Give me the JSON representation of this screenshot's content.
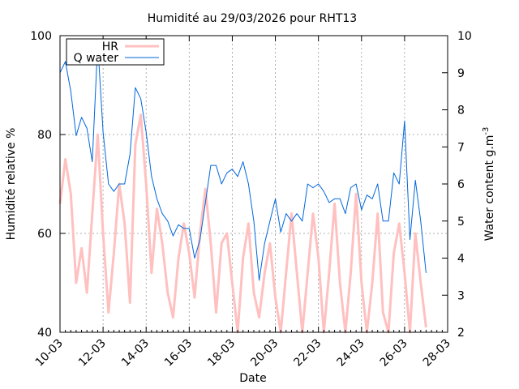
{
  "chart_data": {
    "type": "line",
    "title": "Humidité au 29/03/2026 pour RHT13",
    "xlabel": "Date",
    "ylabel": "Humidité relative %",
    "y2label": "Water content g.m",
    "y2label_sup": "-3",
    "xlim": [
      "2026-03-10",
      "2026-03-28"
    ],
    "ylim": [
      40,
      100
    ],
    "y2lim": [
      2,
      10
    ],
    "x_ticks": [
      "10-03",
      "12-03",
      "14-03",
      "16-03",
      "18-03",
      "20-03",
      "22-03",
      "24-03",
      "26-03",
      "28-03"
    ],
    "y_ticks": [
      40,
      60,
      80,
      100
    ],
    "y2_ticks": [
      2,
      3,
      4,
      5,
      6,
      7,
      8,
      9,
      10
    ],
    "grid": true,
    "legend_position": "top-left",
    "series": [
      {
        "name": "HR",
        "axis": "y",
        "color": "#ffc0c0",
        "x": [
          "2026-03-10 00:00",
          "2026-03-10 06:00",
          "2026-03-10 12:00",
          "2026-03-10 18:00",
          "2026-03-11 00:00",
          "2026-03-11 06:00",
          "2026-03-11 12:00",
          "2026-03-11 18:00",
          "2026-03-12 00:00",
          "2026-03-12 06:00",
          "2026-03-12 12:00",
          "2026-03-12 18:00",
          "2026-03-13 00:00",
          "2026-03-13 06:00",
          "2026-03-13 12:00",
          "2026-03-13 18:00",
          "2026-03-14 00:00",
          "2026-03-14 06:00",
          "2026-03-14 12:00",
          "2026-03-14 18:00",
          "2026-03-15 00:00",
          "2026-03-15 06:00",
          "2026-03-15 12:00",
          "2026-03-15 18:00",
          "2026-03-16 00:00",
          "2026-03-16 06:00",
          "2026-03-16 12:00",
          "2026-03-16 18:00",
          "2026-03-17 00:00",
          "2026-03-17 06:00",
          "2026-03-17 12:00",
          "2026-03-17 18:00",
          "2026-03-18 00:00",
          "2026-03-18 06:00",
          "2026-03-18 12:00",
          "2026-03-18 18:00",
          "2026-03-19 00:00",
          "2026-03-19 06:00",
          "2026-03-19 12:00",
          "2026-03-19 18:00",
          "2026-03-20 00:00",
          "2026-03-20 06:00",
          "2026-03-20 12:00",
          "2026-03-20 18:00",
          "2026-03-21 00:00",
          "2026-03-21 06:00",
          "2026-03-21 12:00",
          "2026-03-21 18:00",
          "2026-03-22 00:00",
          "2026-03-22 06:00",
          "2026-03-22 12:00",
          "2026-03-22 18:00",
          "2026-03-23 00:00",
          "2026-03-23 06:00",
          "2026-03-23 12:00",
          "2026-03-23 18:00",
          "2026-03-24 00:00",
          "2026-03-24 06:00",
          "2026-03-24 12:00",
          "2026-03-24 18:00",
          "2026-03-25 00:00",
          "2026-03-25 06:00",
          "2026-03-25 12:00",
          "2026-03-25 18:00",
          "2026-03-26 00:00",
          "2026-03-26 06:00",
          "2026-03-26 12:00",
          "2026-03-26 18:00",
          "2026-03-27 00:00"
        ],
        "values": [
          66,
          75,
          68,
          50,
          57,
          48,
          64,
          80,
          60,
          44,
          56,
          70,
          62,
          46,
          78,
          84,
          70,
          52,
          65,
          58,
          48,
          43,
          55,
          62,
          56,
          47,
          60,
          69,
          58,
          44,
          58,
          60,
          50,
          40,
          55,
          62,
          48,
          43,
          52,
          58,
          47,
          40,
          52,
          64,
          52,
          40,
          52,
          64,
          55,
          40,
          52,
          66,
          50,
          40,
          52,
          68,
          50,
          40,
          50,
          64,
          44,
          40,
          56,
          62,
          52,
          40,
          60,
          50,
          41
        ]
      },
      {
        "name": "Q water",
        "axis": "y2",
        "color": "#0066dd",
        "x": [
          "2026-03-10 00:00",
          "2026-03-10 06:00",
          "2026-03-10 12:00",
          "2026-03-10 18:00",
          "2026-03-11 00:00",
          "2026-03-11 06:00",
          "2026-03-11 12:00",
          "2026-03-11 18:00",
          "2026-03-12 00:00",
          "2026-03-12 06:00",
          "2026-03-12 12:00",
          "2026-03-12 18:00",
          "2026-03-13 00:00",
          "2026-03-13 06:00",
          "2026-03-13 12:00",
          "2026-03-13 18:00",
          "2026-03-14 00:00",
          "2026-03-14 06:00",
          "2026-03-14 12:00",
          "2026-03-14 18:00",
          "2026-03-15 00:00",
          "2026-03-15 06:00",
          "2026-03-15 12:00",
          "2026-03-15 18:00",
          "2026-03-16 00:00",
          "2026-03-16 06:00",
          "2026-03-16 12:00",
          "2026-03-16 18:00",
          "2026-03-17 00:00",
          "2026-03-17 06:00",
          "2026-03-17 12:00",
          "2026-03-17 18:00",
          "2026-03-18 00:00",
          "2026-03-18 06:00",
          "2026-03-18 12:00",
          "2026-03-18 18:00",
          "2026-03-19 00:00",
          "2026-03-19 06:00",
          "2026-03-19 12:00",
          "2026-03-19 18:00",
          "2026-03-20 00:00",
          "2026-03-20 06:00",
          "2026-03-20 12:00",
          "2026-03-20 18:00",
          "2026-03-21 00:00",
          "2026-03-21 06:00",
          "2026-03-21 12:00",
          "2026-03-21 18:00",
          "2026-03-22 00:00",
          "2026-03-22 06:00",
          "2026-03-22 12:00",
          "2026-03-22 18:00",
          "2026-03-23 00:00",
          "2026-03-23 06:00",
          "2026-03-23 12:00",
          "2026-03-23 18:00",
          "2026-03-24 00:00",
          "2026-03-24 06:00",
          "2026-03-24 12:00",
          "2026-03-24 18:00",
          "2026-03-25 00:00",
          "2026-03-25 06:00",
          "2026-03-25 12:00",
          "2026-03-25 18:00",
          "2026-03-26 00:00",
          "2026-03-26 06:00",
          "2026-03-26 12:00",
          "2026-03-26 18:00",
          "2026-03-27 00:00"
        ],
        "values": [
          9.0,
          9.3,
          8.5,
          7.3,
          7.8,
          7.5,
          6.6,
          9.8,
          7.4,
          6.0,
          5.8,
          6.0,
          6.0,
          6.8,
          8.6,
          8.3,
          7.4,
          6.2,
          5.6,
          5.2,
          5.0,
          4.6,
          4.9,
          4.8,
          4.8,
          4.0,
          4.5,
          5.5,
          6.5,
          6.5,
          6.0,
          6.3,
          6.4,
          6.2,
          6.6,
          6.0,
          5.0,
          3.4,
          4.4,
          5.0,
          5.6,
          4.7,
          5.2,
          5.0,
          5.2,
          5.0,
          6.0,
          5.9,
          6.0,
          5.8,
          5.5,
          5.6,
          5.6,
          5.2,
          5.9,
          6.0,
          5.3,
          5.7,
          5.6,
          6.0,
          5.0,
          5.0,
          6.3,
          6.0,
          7.7,
          4.5,
          6.1,
          5.0,
          3.6
        ]
      }
    ]
  }
}
